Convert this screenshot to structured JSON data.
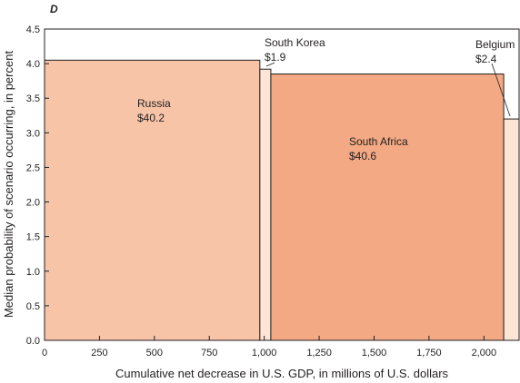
{
  "chart_data": {
    "type": "bar",
    "variant": "variable-width",
    "panel_label": "D",
    "title": "",
    "xlabel": "Cumulative net decrease in U.S. GDP, in millions of U.S. dollars",
    "ylabel": "Median probability of scenario occurring, in percent",
    "xlim": [
      0,
      2160
    ],
    "ylim": [
      0,
      4.5
    ],
    "xticks": [
      0,
      250,
      500,
      750,
      1000,
      1250,
      1500,
      1750,
      2000
    ],
    "xtick_labels": [
      "0",
      "250",
      "500",
      "750",
      "1,000",
      "1,250",
      "1,500",
      "1,750",
      "2,000"
    ],
    "yticks": [
      0,
      0.5,
      1.0,
      1.5,
      2.0,
      2.5,
      3.0,
      3.5,
      4.0,
      4.5
    ],
    "ytick_labels": [
      "0.0",
      "0.5",
      "1.0",
      "1.5",
      "2.0",
      "2.5",
      "3.0",
      "3.5",
      "4.0",
      "4.5"
    ],
    "grid": false,
    "bars": [
      {
        "name": "Russia",
        "value_label": "$40.2",
        "x_start": 0,
        "x_end": 980,
        "y": 4.05,
        "color": "#f7c4a8"
      },
      {
        "name": "South Korea",
        "value_label": "$1.9",
        "x_start": 980,
        "x_end": 1030,
        "y": 3.92,
        "color": "#fde5d6"
      },
      {
        "name": "South Africa",
        "value_label": "$40.6",
        "x_start": 1030,
        "x_end": 2090,
        "y": 3.85,
        "color": "#f2a984"
      },
      {
        "name": "Belgium",
        "value_label": "$2.4",
        "x_start": 2090,
        "x_end": 2160,
        "y": 3.2,
        "color": "#fde5d6"
      }
    ]
  }
}
